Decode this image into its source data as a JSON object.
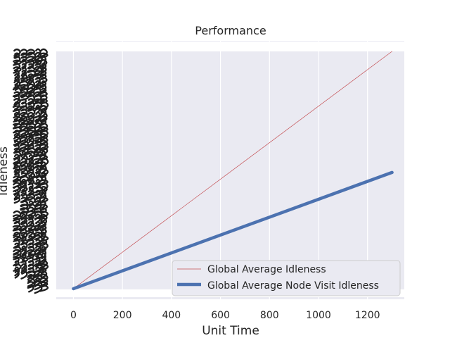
{
  "chart_data": {
    "type": "line",
    "title": "Performance",
    "xlabel": "Unit Time",
    "ylabel": "Idleness",
    "xlim": [
      -70,
      1350
    ],
    "ylim": [
      0,
      1
    ],
    "x_ticks": [
      0,
      200,
      400,
      600,
      800,
      1000,
      1200
    ],
    "x_tick_labels": [
      "0",
      "200",
      "400",
      "600",
      "800",
      "1000",
      "1200"
    ],
    "grid": true,
    "background": "#eaeaf2",
    "legend_position": "lower-right",
    "series": [
      {
        "name": "Global Average Idleness",
        "color": "#c44e52",
        "x": [
          0,
          1300
        ],
        "y": [
          0,
          1
        ]
      },
      {
        "name": "Global Average Node Visit Idleness",
        "color": "#4c72b0",
        "x": [
          0,
          1300
        ],
        "y": [
          0,
          0.49
        ]
      }
    ]
  }
}
